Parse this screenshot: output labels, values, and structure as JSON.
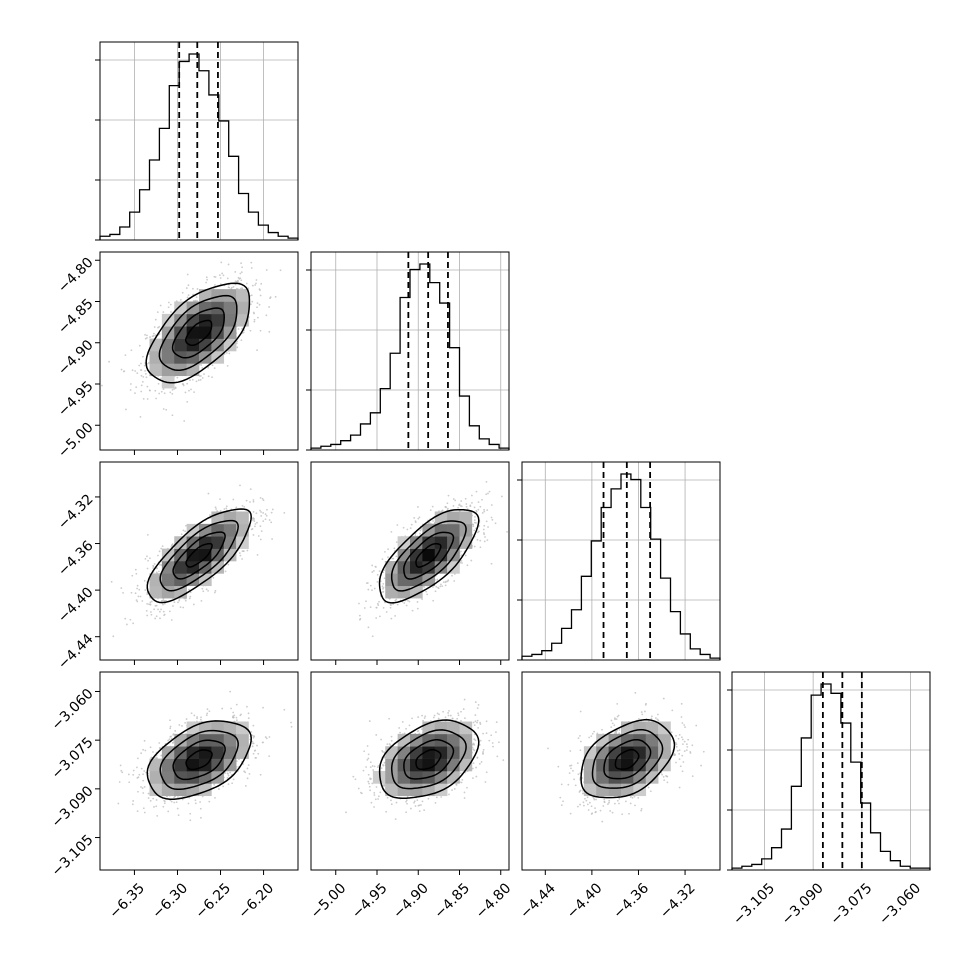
{
  "chart_data": {
    "type": "corner",
    "title": "",
    "params": [
      {
        "range": [
          -6.39,
          -6.16
        ],
        "ticks": [
          -6.35,
          -6.3,
          -6.25,
          -6.2
        ],
        "tick_labels": [
          "−6.35",
          "−6.30",
          "−6.25",
          "−6.20"
        ],
        "mean": -6.275,
        "sigma": 0.03,
        "quantiles": [
          -6.298,
          -6.277,
          -6.253
        ],
        "hist": [
          0.02,
          0.03,
          0.07,
          0.15,
          0.27,
          0.43,
          0.6,
          0.83,
          0.96,
          1.0,
          0.91,
          0.78,
          0.64,
          0.45,
          0.25,
          0.15,
          0.08,
          0.04,
          0.02,
          0.01
        ]
      },
      {
        "range": [
          -5.03,
          -4.79
        ],
        "ticks": [
          -5.0,
          -4.95,
          -4.9,
          -4.85,
          -4.8
        ],
        "tick_labels": [
          "−5.00",
          "−4.95",
          "−4.90",
          "−4.85",
          "−4.80"
        ],
        "mean": -4.888,
        "sigma": 0.03,
        "quantiles": [
          -4.912,
          -4.888,
          -4.864
        ],
        "hist": [
          0.01,
          0.02,
          0.03,
          0.05,
          0.08,
          0.14,
          0.2,
          0.33,
          0.52,
          0.82,
          0.97,
          1.0,
          0.9,
          0.79,
          0.55,
          0.29,
          0.13,
          0.06,
          0.03,
          0.01
        ]
      },
      {
        "range": [
          -4.46,
          -4.29
        ],
        "ticks": [
          -4.44,
          -4.4,
          -4.36,
          -4.32
        ],
        "tick_labels": [
          "−4.44",
          "−4.40",
          "−4.36",
          "−4.32"
        ],
        "mean": -4.37,
        "sigma": 0.02,
        "quantiles": [
          -4.39,
          -4.37,
          -4.35
        ],
        "hist": [
          0.02,
          0.03,
          0.05,
          0.09,
          0.17,
          0.27,
          0.45,
          0.64,
          0.82,
          0.92,
          1.0,
          0.97,
          0.82,
          0.65,
          0.44,
          0.26,
          0.14,
          0.06,
          0.03,
          0.01
        ]
      },
      {
        "range": [
          -3.115,
          -3.054
        ],
        "ticks": [
          -3.105,
          -3.09,
          -3.075,
          -3.06
        ],
        "tick_labels": [
          "−3.105",
          "−3.090",
          "−3.075",
          "−3.060"
        ],
        "mean": -3.081,
        "sigma": 0.006,
        "quantiles": [
          -3.087,
          -3.081,
          -3.075
        ],
        "hist": [
          0.01,
          0.02,
          0.03,
          0.06,
          0.12,
          0.22,
          0.45,
          0.71,
          0.94,
          1.0,
          0.95,
          0.79,
          0.58,
          0.36,
          0.2,
          0.1,
          0.05,
          0.02,
          0.01,
          0.01
        ]
      }
    ],
    "correlations": [
      [
        1.0,
        0.6,
        0.75,
        0.45
      ],
      [
        0.6,
        1.0,
        0.7,
        0.4
      ],
      [
        0.75,
        0.7,
        1.0,
        0.4
      ],
      [
        0.45,
        0.4,
        0.4,
        1.0
      ]
    ],
    "contour_sigmas": [
      0.5,
      1.0,
      1.5,
      2.0
    ],
    "grid": true,
    "colors": {
      "line": "#000000",
      "grid": "#b0b0b0",
      "scatter": "#bfbfbf"
    }
  }
}
